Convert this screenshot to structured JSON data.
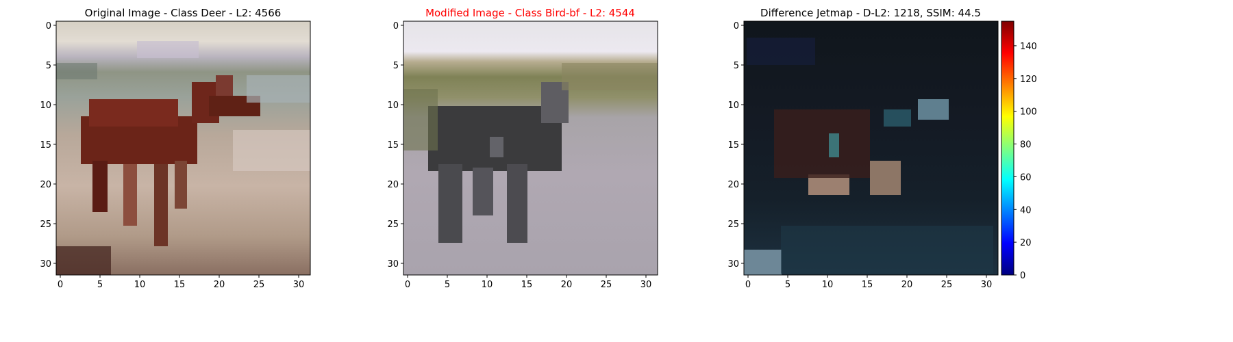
{
  "panels": [
    {
      "title": "Original Image - Class Deer - L2: 4566",
      "title_color": "#000000",
      "image_label": "deer standing in a field (32x32 pixel image)",
      "xticks": [
        "0",
        "5",
        "10",
        "15",
        "20",
        "25",
        "30"
      ],
      "yticks": [
        "0",
        "5",
        "10",
        "15",
        "20",
        "25",
        "30"
      ]
    },
    {
      "title": "Modified Image - Class Bird-bf - L2: 4544",
      "title_color": "#ff0000",
      "image_label": "grey animal on grey ground (modified 32x32 image)",
      "xticks": [
        "0",
        "5",
        "10",
        "15",
        "20",
        "25",
        "30"
      ],
      "yticks": [
        "0",
        "5",
        "10",
        "15",
        "20",
        "25",
        "30"
      ]
    },
    {
      "title": "Difference Jetmap - D-L2: 1218, SSIM: 44.5",
      "title_color": "#000000",
      "image_label": "dark difference heatmap (32x32)",
      "xticks": [
        "0",
        "5",
        "10",
        "15",
        "20",
        "25",
        "30"
      ],
      "yticks": [
        "0",
        "5",
        "10",
        "15",
        "20",
        "25",
        "30"
      ]
    }
  ],
  "colorbar": {
    "ticks": [
      "0",
      "20",
      "40",
      "60",
      "80",
      "100",
      "120",
      "140"
    ],
    "min": 0,
    "max": 155,
    "colormap": "jet"
  }
}
